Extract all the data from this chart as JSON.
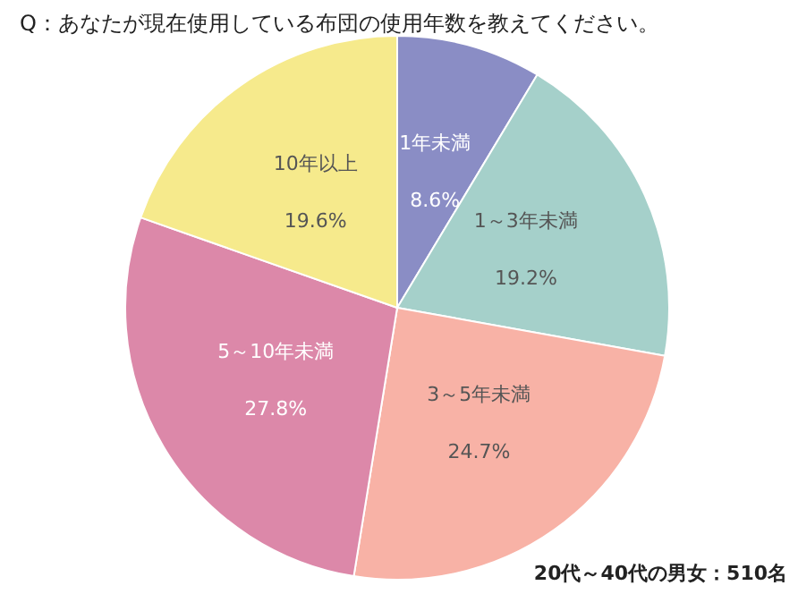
{
  "chart_data": {
    "type": "pie",
    "title": "Q：あなたが現在使用している布団の使用年数を教えてください。",
    "categories": [
      "1年未満",
      "1～3年未満",
      "3～5年未満",
      "5～10年未満",
      "10年以上"
    ],
    "values": [
      8.6,
      19.2,
      24.7,
      27.8,
      19.6
    ],
    "colors": [
      "#8a8dc5",
      "#a5d0ca",
      "#f8b2a6",
      "#dc88a9",
      "#f6ea8c"
    ],
    "value_labels": [
      "8.6%",
      "19.2%",
      "24.7%",
      "27.8%",
      "19.6%"
    ],
    "annotations": [
      "20代～40代の男女：510名"
    ]
  }
}
